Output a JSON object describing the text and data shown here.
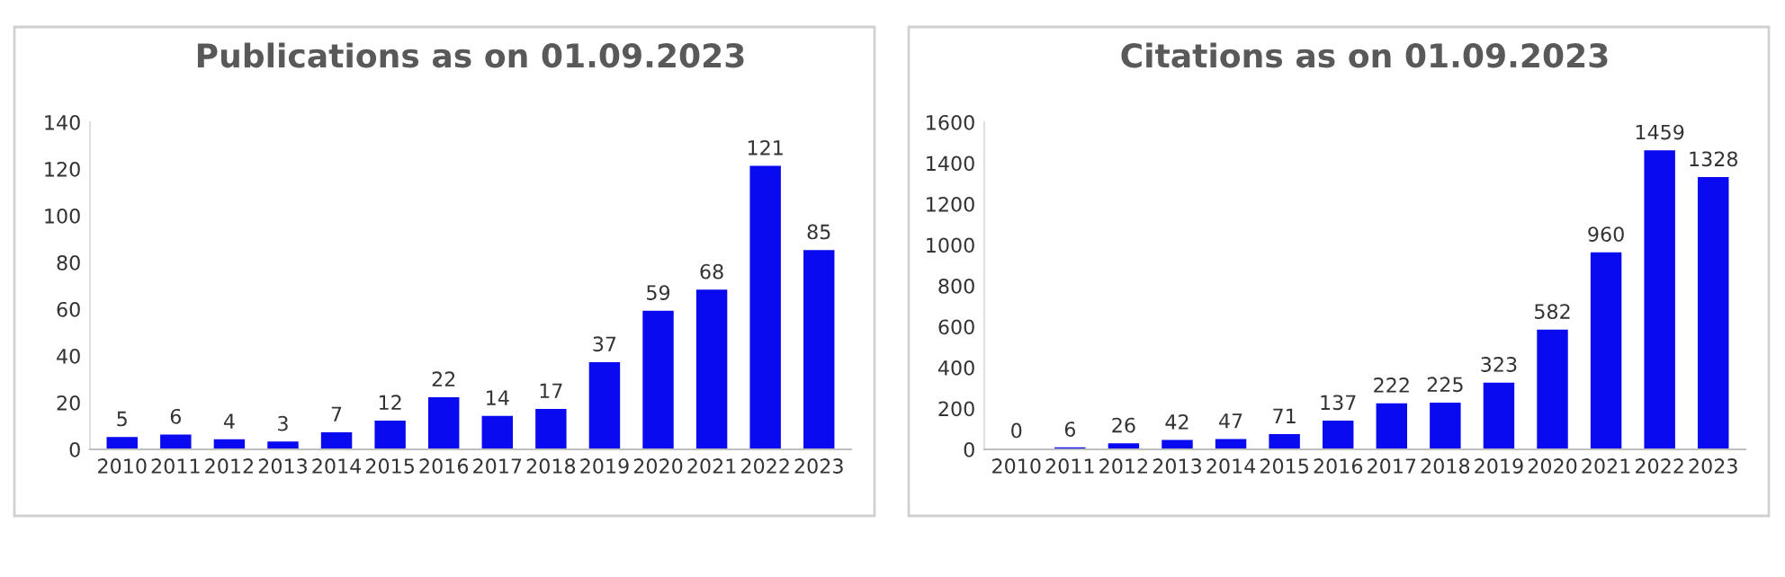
{
  "chart_data": [
    {
      "type": "bar",
      "title": "Publications as on 01.09.2023",
      "categories": [
        "2010",
        "2011",
        "2012",
        "2013",
        "2014",
        "2015",
        "2016",
        "2017",
        "2018",
        "2019",
        "2020",
        "2021",
        "2022",
        "2023"
      ],
      "values": [
        5,
        6,
        4,
        3,
        7,
        12,
        22,
        14,
        17,
        37,
        59,
        68,
        121,
        85
      ],
      "color": "#0a0af0",
      "ylim": [
        0,
        140
      ],
      "yticks": [
        0,
        20,
        40,
        60,
        80,
        100,
        120,
        140
      ],
      "grid": false,
      "data_labels": true,
      "legend": false
    },
    {
      "type": "bar",
      "title": "Citations as on 01.09.2023",
      "categories": [
        "2010",
        "2011",
        "2012",
        "2013",
        "2014",
        "2015",
        "2016",
        "2017",
        "2018",
        "2019",
        "2020",
        "2021",
        "2022",
        "2023"
      ],
      "values": [
        0,
        6,
        26,
        42,
        47,
        71,
        137,
        222,
        225,
        323,
        582,
        960,
        1459,
        1328
      ],
      "color": "#0a0af0",
      "ylim": [
        0,
        1600
      ],
      "yticks": [
        0,
        200,
        400,
        600,
        800,
        1000,
        1200,
        1400,
        1600
      ],
      "grid": false,
      "data_labels": true,
      "legend": false
    }
  ]
}
